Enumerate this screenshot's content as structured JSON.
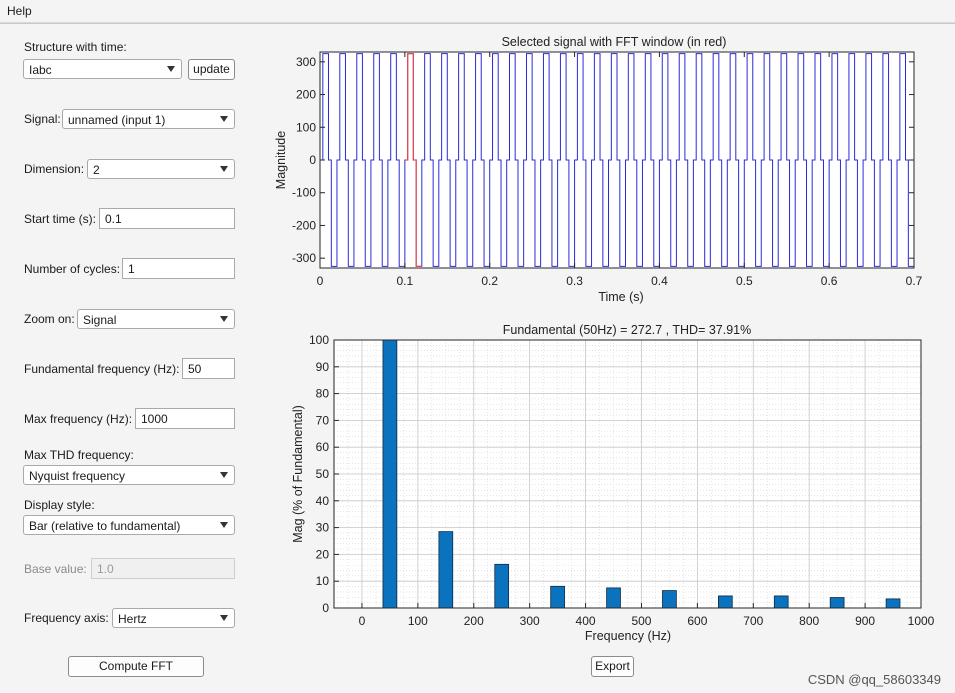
{
  "menubar": {
    "help_label": "Help"
  },
  "controls": {
    "structure_label": "Structure with time:",
    "structure_value": "Iabc",
    "update_label": "update",
    "signal_label": "Signal:",
    "signal_value": "unnamed (input 1)",
    "dimension_label": "Dimension:",
    "dimension_value": "2",
    "start_time_label": "Start time (s):",
    "start_time_value": "0.1",
    "cycles_label": "Number of cycles:",
    "cycles_value": "1",
    "zoom_label": "Zoom on:",
    "zoom_value": "Signal",
    "fund_freq_label": "Fundamental frequency (Hz):",
    "fund_freq_value": "50",
    "max_freq_label": "Max frequency (Hz):",
    "max_freq_value": "1000",
    "max_thd_label": "Max THD frequency:",
    "max_thd_value": "Nyquist frequency",
    "display_style_label": "Display style:",
    "display_style_value": "Bar (relative to fundamental)",
    "base_value_label": "Base value:",
    "base_value_value": "1.0",
    "freq_axis_label": "Frequency axis:",
    "freq_axis_value": "Hertz",
    "compute_label": "Compute FFT",
    "export_label": "Export"
  },
  "watermark": "CSDN @qq_58603349",
  "colors": {
    "signal": "#2b2bd6",
    "window": "#e84a4a",
    "bar": "#0b72bd",
    "bar_edge": "#0d2a45"
  },
  "chart_data": [
    {
      "type": "line",
      "title": "Selected signal with FFT window (in red)",
      "xlabel": "Time (s)",
      "ylabel": "Magnitude",
      "xlim": [
        0,
        0.7
      ],
      "ylim": [
        -330,
        330
      ],
      "xticks": [
        "0",
        "0.1",
        "0.2",
        "0.3",
        "0.4",
        "0.5",
        "0.6",
        "0.7"
      ],
      "yticks": [
        "300",
        "200",
        "100",
        "0",
        "-100",
        "-200",
        "-300"
      ],
      "grid": false,
      "series": [
        {
          "frequency_hz": 50,
          "amplitude": 325,
          "waveform": "six-step",
          "color": "#2b2bd6"
        },
        {
          "t_start": 0.1,
          "cycles": 1,
          "color": "#e84a4a"
        }
      ]
    },
    {
      "type": "bar",
      "title": "Fundamental (50Hz) = 272.7 , THD= 37.91%",
      "xlabel": "Frequency (Hz)",
      "ylabel": "Mag (% of Fundamental)",
      "xlim": [
        -50,
        1000
      ],
      "ylim": [
        0,
        100
      ],
      "xticks": [
        "0",
        "100",
        "200",
        "300",
        "400",
        "500",
        "600",
        "700",
        "800",
        "900",
        "1000"
      ],
      "yticks": [
        "100",
        "90",
        "80",
        "70",
        "60",
        "50",
        "40",
        "30",
        "20",
        "10",
        "0"
      ],
      "grid": true,
      "x": [
        50,
        150,
        250,
        350,
        450,
        550,
        650,
        750,
        850,
        950
      ],
      "values": [
        100,
        28.5,
        16.3,
        8.1,
        7.5,
        6.5,
        4.5,
        4.5,
        3.9,
        3.4
      ]
    }
  ]
}
